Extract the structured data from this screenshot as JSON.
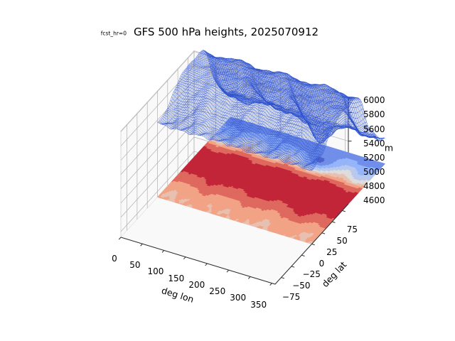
{
  "figure": {
    "background": "#ffffff"
  },
  "chart_data": {
    "type": "3d_surface",
    "title": "GFS 500 hPa heights, 2025070912",
    "annotation": "fcst_hr=0",
    "xlabel": "deg lon",
    "ylabel": "deg lat",
    "zlabel": "m",
    "x_ticks": [
      0,
      50,
      100,
      150,
      200,
      250,
      300,
      350
    ],
    "y_ticks": [
      -75,
      -50,
      -25,
      0,
      25,
      50,
      75
    ],
    "z_ticks": [
      4600,
      4800,
      5000,
      5200,
      5400,
      5600,
      5800,
      6000
    ],
    "xlim": [
      0,
      357.5
    ],
    "ylim": [
      -90,
      90
    ],
    "zlim": [
      4520,
      6010
    ],
    "grid": true,
    "wireframe_color": "#2e52cc",
    "axis_color": "#2f2f2f",
    "grid_color": "#b0b0b0",
    "pane_color": "#f9f9f9",
    "pane_edge_color": "#cfcfcf",
    "contour_levels": [
      4650,
      4800,
      4950,
      5100,
      5250,
      5400,
      5550,
      5700,
      5850,
      6000
    ],
    "colormap": {
      "name": "coolwarm",
      "stops": [
        [
          0.0,
          "#3b4cc0"
        ],
        [
          0.25,
          "#8cb0fe"
        ],
        [
          0.5,
          "#dddddd"
        ],
        [
          0.75,
          "#f59c7b"
        ],
        [
          1.0,
          "#b40426"
        ]
      ]
    },
    "surface_grid": {
      "units": "m",
      "lon": [
        0,
        25.5,
        51.1,
        76.6,
        102.1,
        127.7,
        153.2,
        178.8,
        204.3,
        229.8,
        255.4,
        280.9,
        306.4,
        332.0,
        357.5
      ],
      "lat": [
        90,
        75,
        60,
        45,
        30,
        15,
        0,
        -15,
        -30,
        -45,
        -60,
        -75,
        -90
      ],
      "heights_m": [
        [
          5555,
          5550,
          5548,
          5552,
          5558,
          5560,
          5556,
          5550,
          5546,
          5548,
          5554,
          5560,
          5556,
          5550,
          5555
        ],
        [
          5570,
          5540,
          5560,
          5600,
          5580,
          5545,
          5565,
          5605,
          5575,
          5540,
          5570,
          5610,
          5580,
          5545,
          5570
        ],
        [
          5650,
          5600,
          5630,
          5700,
          5660,
          5610,
          5645,
          5705,
          5665,
          5615,
          5655,
          5710,
          5670,
          5620,
          5650
        ],
        [
          5790,
          5740,
          5770,
          5825,
          5795,
          5750,
          5785,
          5830,
          5795,
          5755,
          5800,
          5858,
          5820,
          5760,
          5790
        ],
        [
          5868,
          5850,
          5862,
          5885,
          5872,
          5852,
          5866,
          5888,
          5872,
          5854,
          5868,
          5890,
          5874,
          5856,
          5868
        ],
        [
          5902,
          5896,
          5900,
          5908,
          5904,
          5896,
          5902,
          5910,
          5904,
          5898,
          5902,
          5912,
          5906,
          5898,
          5902
        ],
        [
          5882,
          5878,
          5880,
          5886,
          5882,
          5878,
          5882,
          5888,
          5884,
          5880,
          5882,
          5888,
          5884,
          5880,
          5882
        ],
        [
          5894,
          5886,
          5890,
          5900,
          5894,
          5886,
          5892,
          5902,
          5896,
          5888,
          5894,
          5902,
          5896,
          5888,
          5894
        ],
        [
          5790,
          5730,
          5760,
          5830,
          5800,
          5740,
          5780,
          5835,
          5800,
          5745,
          5780,
          5838,
          5805,
          5750,
          5790
        ],
        [
          5380,
          5250,
          5300,
          5460,
          5400,
          5260,
          5330,
          5470,
          5300,
          5180,
          5230,
          5430,
          5460,
          5290,
          5380
        ],
        [
          5150,
          5050,
          5100,
          5230,
          5170,
          5060,
          5130,
          5220,
          5000,
          4790,
          4900,
          5150,
          5220,
          5080,
          5150
        ],
        [
          4960,
          4930,
          4900,
          4950,
          5000,
          4970,
          4930,
          4900,
          4870,
          4850,
          4920,
          5000,
          4970,
          4940,
          4960
        ],
        [
          4880,
          4875,
          4870,
          4878,
          4885,
          4880,
          4874,
          4868,
          4864,
          4860,
          4872,
          4885,
          4880,
          4874,
          4880
        ]
      ]
    },
    "ripple": {
      "amplitude_m": 20,
      "a1": 0.14,
      "b1": 0.11,
      "c1": 0.165,
      "a2": 0.29,
      "b2": 2.1,
      "c2": 0.23,
      "lat_weight_deg": 50
    }
  }
}
